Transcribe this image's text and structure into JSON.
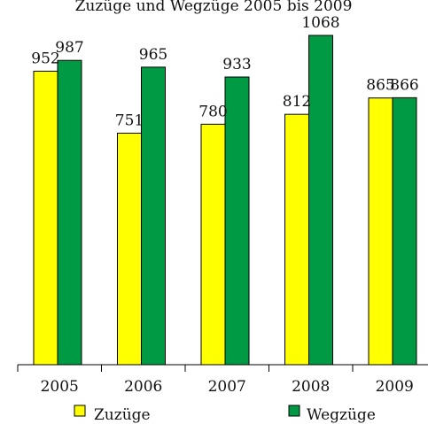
{
  "chart_data": {
    "type": "bar",
    "title": "Zuzüge und Wegzüge 2005 bis 2009",
    "categories": [
      "2005",
      "2006",
      "2007",
      "2008",
      "2009"
    ],
    "series": [
      {
        "name": "Zuzüge",
        "color": "#ffff00",
        "values": [
          952,
          751,
          780,
          812,
          865
        ]
      },
      {
        "name": "Wegzüge",
        "color": "#009a44",
        "values": [
          987,
          965,
          933,
          1068,
          866
        ]
      }
    ],
    "ylim": [
      0,
      1100
    ],
    "grid": false,
    "legend": "bottom"
  }
}
